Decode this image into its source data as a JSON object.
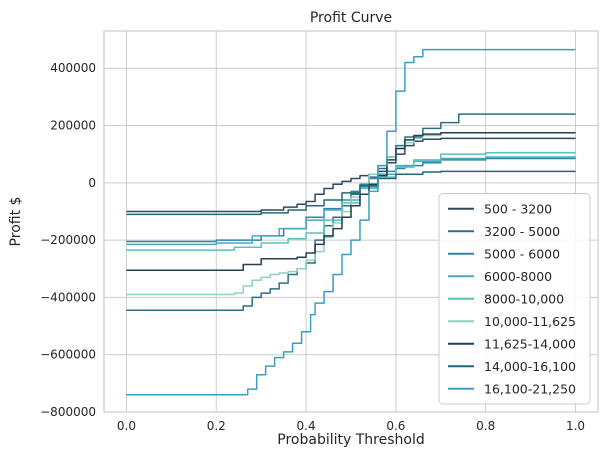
{
  "chart_data": {
    "type": "line",
    "title": "Profit Curve",
    "xlabel": "Probability Threshold",
    "ylabel": "Profit $",
    "xlim": [
      -0.05,
      1.05
    ],
    "ylim": [
      -800000,
      530000
    ],
    "x_ticks": [
      0.0,
      0.2,
      0.4,
      0.6,
      0.8,
      1.0
    ],
    "x_tick_labels": [
      "0.0",
      "0.2",
      "0.4",
      "0.6",
      "0.8",
      "1.0"
    ],
    "y_ticks": [
      -800000,
      -600000,
      -400000,
      -200000,
      0,
      200000,
      400000
    ],
    "y_tick_labels": [
      "−800000",
      "−600000",
      "−400000",
      "−200000",
      "0",
      "200000",
      "400000"
    ],
    "grid": true,
    "legend_position": "lower right",
    "series": [
      {
        "name": "500 - 3200",
        "color": "#2e4a5c",
        "x": [
          0.0,
          0.1,
          0.2,
          0.3,
          0.35,
          0.38,
          0.4,
          0.42,
          0.44,
          0.46,
          0.48,
          0.5,
          0.52,
          0.54,
          0.56,
          0.58,
          0.6,
          0.62,
          0.64,
          0.66,
          0.7,
          0.8,
          0.9,
          1.0
        ],
        "y": [
          -100000,
          -100000,
          -100000,
          -95000,
          -85000,
          -75000,
          -65000,
          -40000,
          -20000,
          -5000,
          5000,
          15000,
          25000,
          30000,
          40000,
          70000,
          100000,
          130000,
          145000,
          152000,
          155000,
          155000,
          155000,
          155000
        ]
      },
      {
        "name": "3200 - 5000",
        "color": "#2c6e82",
        "x": [
          0.0,
          0.1,
          0.2,
          0.22,
          0.24,
          0.26,
          0.28,
          0.3,
          0.32,
          0.34,
          0.36,
          0.38,
          0.4,
          0.42,
          0.44,
          0.46,
          0.48,
          0.5,
          0.52,
          0.54,
          0.56,
          0.58,
          0.6,
          0.62,
          0.66,
          0.7,
          0.74,
          0.8,
          0.9,
          1.0
        ],
        "y": [
          -445000,
          -445000,
          -445000,
          -445000,
          -445000,
          -430000,
          -400000,
          -385000,
          -370000,
          -350000,
          -320000,
          -300000,
          -280000,
          -200000,
          -150000,
          -120000,
          -80000,
          -40000,
          -10000,
          20000,
          50000,
          90000,
          130000,
          160000,
          190000,
          210000,
          240000,
          240000,
          240000,
          240000
        ]
      },
      {
        "name": "5000 - 6000",
        "color": "#3183a4",
        "x": [
          0.0,
          0.1,
          0.2,
          0.3,
          0.35,
          0.4,
          0.44,
          0.48,
          0.5,
          0.52,
          0.54,
          0.56,
          0.58,
          0.6,
          0.62,
          0.66,
          0.7,
          0.8,
          0.9,
          1.0
        ],
        "y": [
          -205000,
          -205000,
          -200000,
          -185000,
          -160000,
          -120000,
          -90000,
          -60000,
          -30000,
          -5000,
          15000,
          30000,
          40000,
          50000,
          60000,
          70000,
          80000,
          85000,
          85000,
          85000
        ]
      },
      {
        "name": "6000-8000",
        "color": "#4aa8c4",
        "x": [
          0.0,
          0.1,
          0.2,
          0.28,
          0.34,
          0.4,
          0.44,
          0.48,
          0.52,
          0.56,
          0.6,
          0.64,
          0.7,
          0.8,
          0.9,
          1.0
        ],
        "y": [
          -215000,
          -215000,
          -210000,
          -185000,
          -160000,
          -130000,
          -95000,
          -60000,
          -15000,
          30000,
          60000,
          75000,
          85000,
          90000,
          90000,
          90000
        ]
      },
      {
        "name": "8000-10,000",
        "color": "#5bbfbf",
        "x": [
          0.0,
          0.1,
          0.2,
          0.24,
          0.3,
          0.36,
          0.4,
          0.44,
          0.48,
          0.52,
          0.56,
          0.6,
          0.64,
          0.7,
          0.8,
          0.9,
          1.0
        ],
        "y": [
          -235000,
          -235000,
          -235000,
          -225000,
          -210000,
          -195000,
          -175000,
          -130000,
          -70000,
          -20000,
          20000,
          55000,
          80000,
          100000,
          105000,
          105000,
          105000
        ]
      },
      {
        "name": "10,000-11,625",
        "color": "#8fd0bd",
        "x": [
          0.0,
          0.1,
          0.2,
          0.24,
          0.26,
          0.28,
          0.3,
          0.32,
          0.34,
          0.36,
          0.38,
          0.4,
          0.42,
          0.44,
          0.46,
          0.48,
          0.5,
          0.52,
          0.54,
          0.56,
          0.58,
          0.6,
          0.62,
          0.64,
          0.66,
          0.7,
          0.8,
          0.9,
          1.0
        ],
        "y": [
          -390000,
          -390000,
          -390000,
          -385000,
          -360000,
          -340000,
          -330000,
          -320000,
          -315000,
          -310000,
          -300000,
          -270000,
          -240000,
          -190000,
          -140000,
          -100000,
          -50000,
          -10000,
          30000,
          60000,
          90000,
          120000,
          140000,
          155000,
          165000,
          175000,
          175000,
          175000,
          175000
        ]
      },
      {
        "name": "11,625-14,000",
        "color": "#243f4f",
        "x": [
          0.0,
          0.1,
          0.2,
          0.23,
          0.26,
          0.3,
          0.34,
          0.38,
          0.4,
          0.42,
          0.44,
          0.46,
          0.48,
          0.5,
          0.52,
          0.54,
          0.56,
          0.58,
          0.6,
          0.62,
          0.64,
          0.66,
          0.7,
          0.8,
          0.9,
          1.0
        ],
        "y": [
          -305000,
          -305000,
          -305000,
          -305000,
          -285000,
          -265000,
          -265000,
          -260000,
          -245000,
          -215000,
          -185000,
          -160000,
          -120000,
          -80000,
          -40000,
          -5000,
          25000,
          80000,
          120000,
          150000,
          165000,
          170000,
          175000,
          175000,
          175000,
          175000
        ]
      },
      {
        "name": "14,000-16,100",
        "color": "#25677a",
        "x": [
          0.0,
          0.1,
          0.2,
          0.3,
          0.36,
          0.4,
          0.44,
          0.48,
          0.52,
          0.56,
          0.6,
          0.66,
          0.7,
          0.8,
          0.9,
          1.0
        ],
        "y": [
          -110000,
          -110000,
          -110000,
          -105000,
          -95000,
          -80000,
          -60000,
          -35000,
          -10000,
          15000,
          30000,
          38000,
          40000,
          40000,
          40000,
          40000
        ]
      },
      {
        "name": "16,100-21,250",
        "color": "#3a9ec0",
        "x": [
          0.0,
          0.1,
          0.2,
          0.25,
          0.27,
          0.29,
          0.31,
          0.33,
          0.35,
          0.37,
          0.39,
          0.41,
          0.42,
          0.44,
          0.46,
          0.48,
          0.5,
          0.52,
          0.54,
          0.56,
          0.58,
          0.6,
          0.62,
          0.64,
          0.66,
          0.7,
          0.8,
          0.9,
          1.0
        ],
        "y": [
          -740000,
          -740000,
          -740000,
          -740000,
          -720000,
          -670000,
          -640000,
          -610000,
          -590000,
          -560000,
          -520000,
          -460000,
          -420000,
          -380000,
          -320000,
          -250000,
          -200000,
          -130000,
          -30000,
          60000,
          180000,
          320000,
          420000,
          440000,
          465000,
          465000,
          465000,
          465000,
          465000
        ]
      }
    ]
  }
}
